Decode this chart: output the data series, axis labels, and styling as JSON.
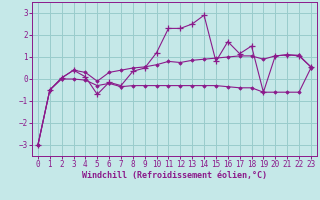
{
  "xlabel": "Windchill (Refroidissement éolien,°C)",
  "x": [
    0,
    1,
    2,
    3,
    4,
    5,
    6,
    7,
    8,
    9,
    10,
    11,
    12,
    13,
    14,
    15,
    16,
    17,
    18,
    19,
    20,
    21,
    22,
    23
  ],
  "line1_spiky": [
    -3.0,
    -0.5,
    0.05,
    0.4,
    0.1,
    -0.7,
    -0.15,
    -0.3,
    0.35,
    0.5,
    1.2,
    2.3,
    2.3,
    2.5,
    2.9,
    0.8,
    1.7,
    1.15,
    1.5,
    -0.6,
    1.05,
    1.1,
    1.05,
    0.55
  ],
  "line2_upper": [
    -3.0,
    -0.5,
    0.05,
    0.4,
    0.3,
    -0.1,
    0.3,
    0.4,
    0.5,
    0.55,
    0.65,
    0.8,
    0.75,
    0.85,
    0.9,
    0.95,
    1.0,
    1.05,
    1.05,
    0.9,
    1.05,
    1.1,
    1.08,
    0.55
  ],
  "line3_lower": [
    -3.0,
    -0.5,
    0.0,
    0.0,
    -0.05,
    -0.3,
    -0.2,
    -0.35,
    -0.3,
    -0.3,
    -0.3,
    -0.3,
    -0.3,
    -0.3,
    -0.3,
    -0.3,
    -0.35,
    -0.4,
    -0.4,
    -0.6,
    -0.6,
    -0.6,
    -0.6,
    0.5
  ],
  "line_color": "#8B1A8B",
  "bg_color": "#C5E8E8",
  "grid_color": "#99CCCC",
  "ylim": [
    -3.5,
    3.5
  ],
  "xlim": [
    -0.5,
    23.5
  ],
  "yticks": [
    -3,
    -2,
    -1,
    0,
    1,
    2,
    3
  ],
  "xticks": [
    0,
    1,
    2,
    3,
    4,
    5,
    6,
    7,
    8,
    9,
    10,
    11,
    12,
    13,
    14,
    15,
    16,
    17,
    18,
    19,
    20,
    21,
    22,
    23
  ],
  "tick_fontsize": 5.5,
  "xlabel_fontsize": 6.0
}
